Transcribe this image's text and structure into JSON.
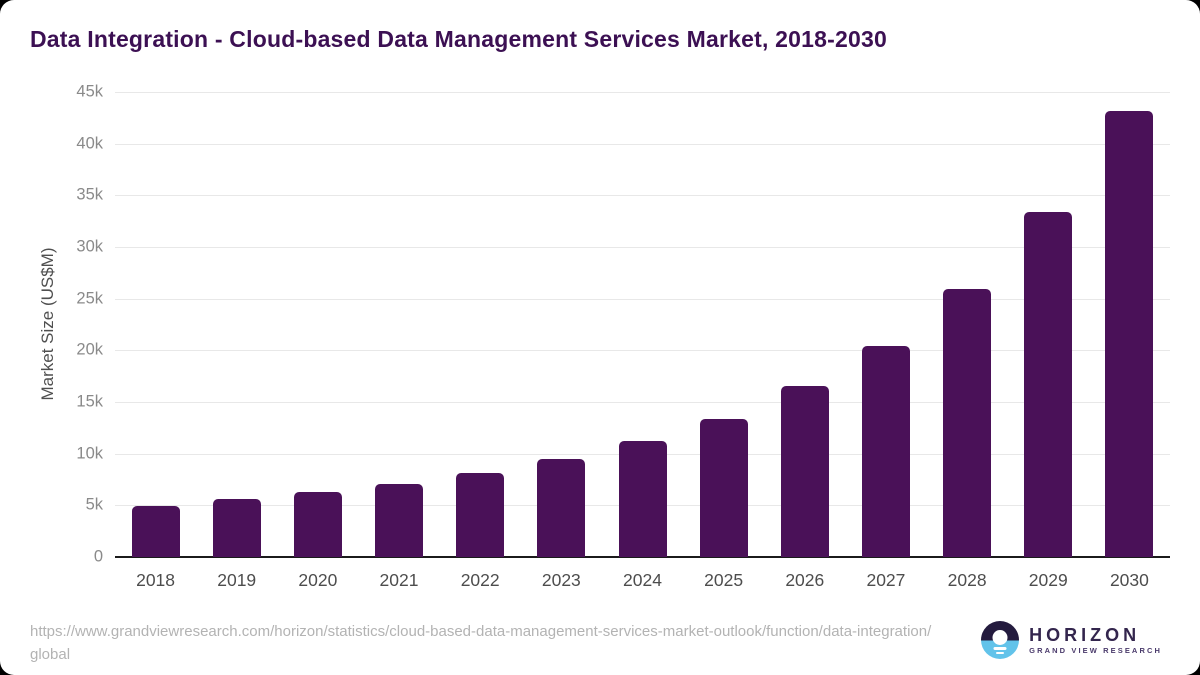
{
  "page": {
    "title": "Data Integration - Cloud-based Data Management Services Market, 2018-2030"
  },
  "chart_data": {
    "type": "bar",
    "title": "Data Integration - Cloud-based Data Management Services Market, 2018-2030",
    "xlabel": "",
    "ylabel": "Market Size (US$M)",
    "categories": [
      "2018",
      "2019",
      "2020",
      "2021",
      "2022",
      "2023",
      "2024",
      "2025",
      "2026",
      "2027",
      "2028",
      "2029",
      "2030"
    ],
    "values": [
      4900,
      5600,
      6250,
      7050,
      8150,
      9500,
      11200,
      13400,
      16550,
      20450,
      25900,
      33350,
      43200
    ],
    "unit": "US$M",
    "ylim": [
      0,
      45000
    ],
    "ytick_values": [
      0,
      5000,
      10000,
      15000,
      20000,
      25000,
      30000,
      35000,
      40000,
      45000
    ],
    "ytick_labels": [
      "0",
      "5k",
      "10k",
      "15k",
      "20k",
      "25k",
      "30k",
      "35k",
      "40k",
      "45k"
    ],
    "bar_color": "#4a1158",
    "grid": "horizontal-only",
    "legend": "none"
  },
  "footer": {
    "source_url": "https://www.grandviewresearch.com/horizon/statistics/cloud-based-data-management-services-market-outlook/function/data-integration/global",
    "logo": {
      "brand": "HORIZON",
      "tagline": "GRAND VIEW RESEARCH"
    }
  },
  "colors": {
    "title_text": "#3c1053",
    "bar": "#4a1158",
    "axis_line": "#1b1b1b",
    "gridline": "#e8e8e8",
    "ytick_text": "#8a8a8a",
    "xtick_text": "#4d4d4d",
    "url_text": "#b3b3b3",
    "logo_dark_half": "#241b3e",
    "logo_blue_half": "#62c3ea"
  }
}
